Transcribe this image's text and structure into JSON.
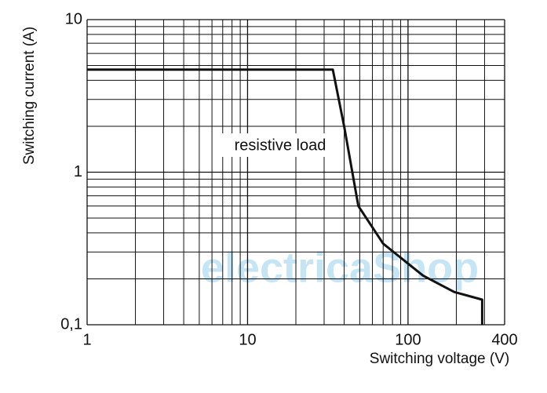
{
  "chart_data": {
    "type": "line",
    "xlabel": "Switching voltage (V)",
    "ylabel": "Switching current (A)",
    "annotation": "resistive load",
    "watermark": "electricaShop",
    "log_x": true,
    "log_y": true,
    "grid": true,
    "xlim": [
      1,
      400
    ],
    "ylim": [
      0.1,
      10
    ],
    "xticks": [
      1,
      10,
      100,
      400
    ],
    "yticks": [
      {
        "value": 0.1,
        "label": "0,1"
      },
      1,
      10
    ],
    "x_grid_lines": [
      2,
      3,
      4,
      5,
      6,
      7,
      8,
      9,
      20,
      30,
      40,
      50,
      60,
      70,
      80,
      90,
      200,
      300
    ],
    "y_grid_lines": [
      0.2,
      0.3,
      0.4,
      0.5,
      0.6,
      0.7,
      0.8,
      0.9,
      2,
      3,
      4,
      5,
      6,
      7,
      8,
      9
    ],
    "series": [
      {
        "color": "#111111",
        "x": [
          1,
          34,
          40,
          49,
          70,
          124,
          194,
          290,
          290
        ],
        "values": [
          4.7,
          4.7,
          2,
          0.6,
          0.34,
          0.21,
          0.164,
          0.146,
          0.1
        ]
      }
    ]
  }
}
